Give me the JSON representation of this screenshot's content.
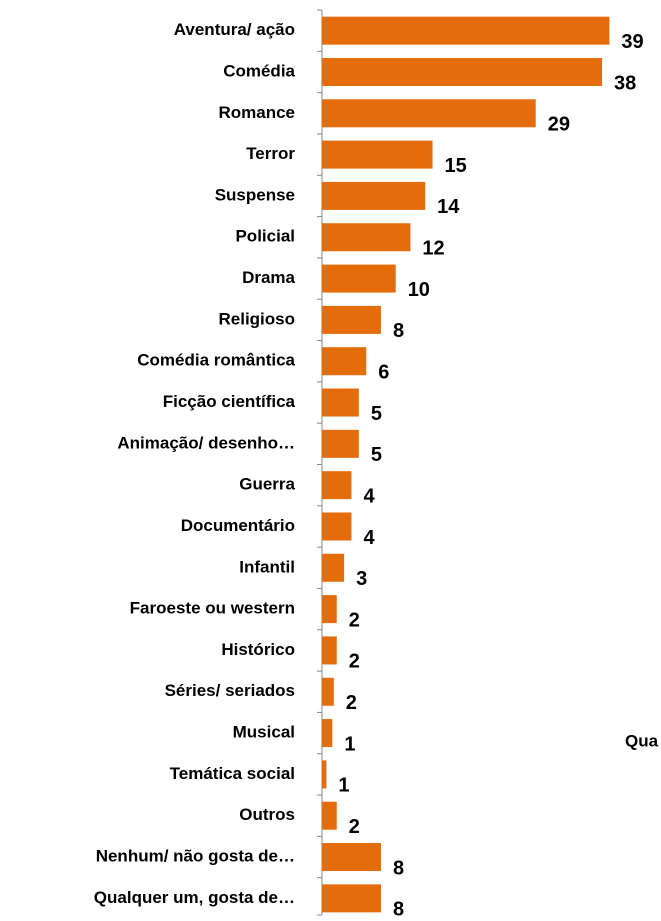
{
  "chart_data": {
    "type": "bar",
    "orientation": "horizontal",
    "categories": [
      "Aventura/ ação",
      "Comédia",
      "Romance",
      "Terror",
      "Suspense",
      "Policial",
      "Drama",
      "Religioso",
      "Comédia romântica",
      "Ficção científica",
      "Animação/ desenho…",
      "Guerra",
      "Documentário",
      "Infantil",
      "Faroeste ou western",
      "Histórico",
      "Séries/ seriados",
      "Musical",
      "Temática social",
      "Outros",
      "Nenhum/ não gosta de…",
      "Qualquer um, gosta de…"
    ],
    "values": [
      39,
      38,
      29,
      15,
      14,
      12,
      10,
      8,
      6,
      5,
      5,
      4,
      4,
      3,
      2,
      2,
      1.6,
      1.4,
      0.6,
      2,
      8,
      8
    ],
    "value_labels": [
      "39",
      "38",
      "29",
      "15",
      "14",
      "12",
      "10",
      "8",
      "6",
      "5",
      "5",
      "4",
      "4",
      "3",
      "2",
      "2",
      "2",
      "1",
      "1",
      "2",
      "8",
      "8"
    ],
    "color": "#e46c0a",
    "xlim": [
      0,
      46
    ],
    "annotation": "Qua"
  }
}
